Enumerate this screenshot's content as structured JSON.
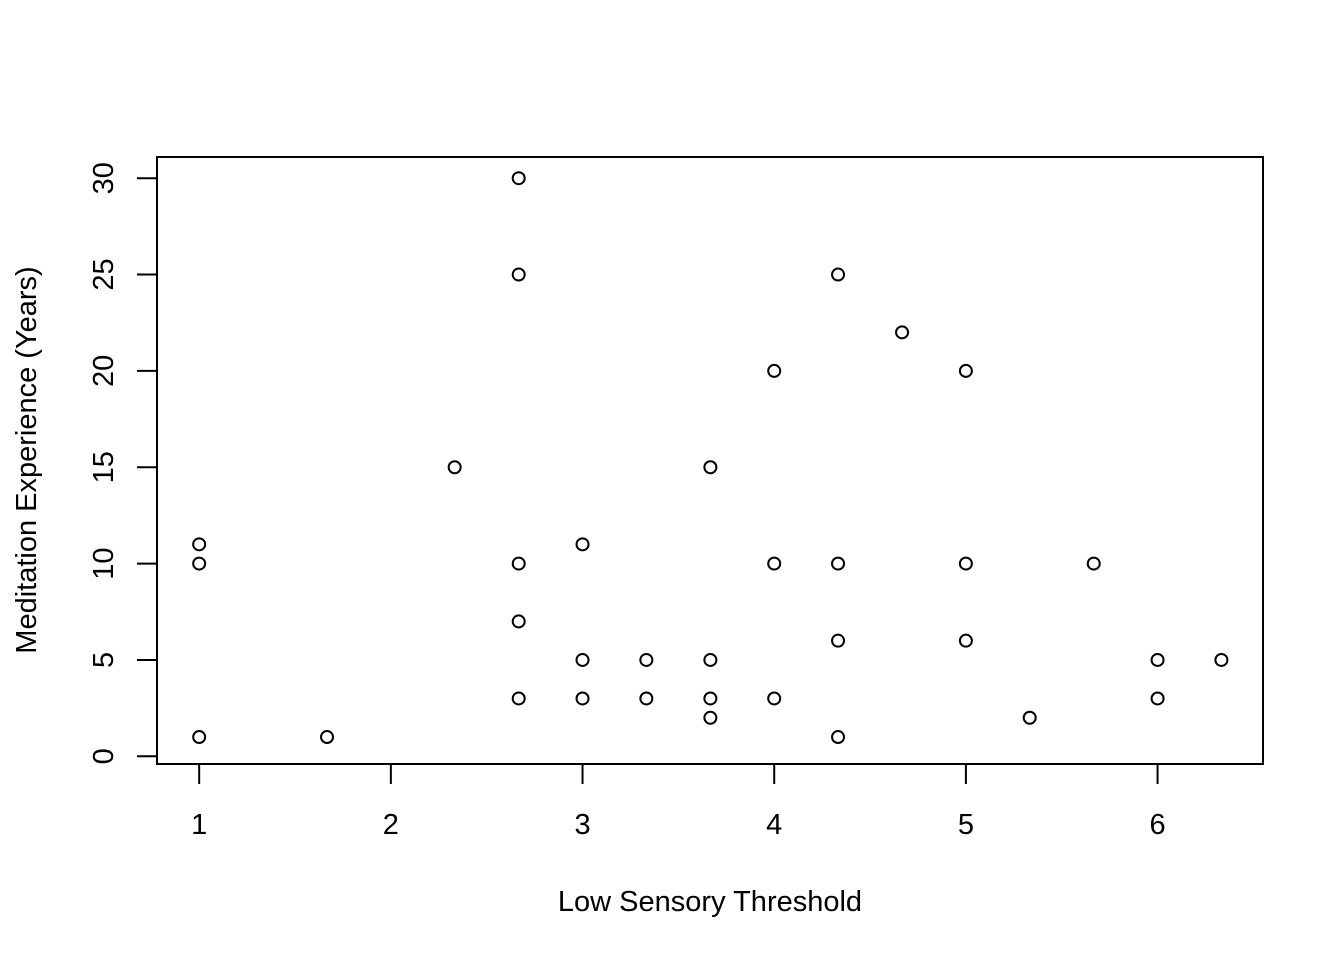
{
  "chart_data": {
    "type": "scatter",
    "title": "",
    "xlabel": "Low Sensory Threshold",
    "ylabel": "Meditation Experience (Years)",
    "xlim": [
      0.78,
      6.55
    ],
    "ylim": [
      -0.4,
      31.1
    ],
    "xticks": [
      1,
      2,
      3,
      4,
      5,
      6
    ],
    "yticks": [
      0,
      5,
      10,
      15,
      20,
      25,
      30
    ],
    "grid": false,
    "marker": "open-circle",
    "color": "#000000",
    "points": [
      {
        "x": 1.0,
        "y": 11
      },
      {
        "x": 1.0,
        "y": 10
      },
      {
        "x": 1.0,
        "y": 1
      },
      {
        "x": 1.667,
        "y": 1
      },
      {
        "x": 2.333,
        "y": 15
      },
      {
        "x": 2.667,
        "y": 30
      },
      {
        "x": 2.667,
        "y": 25
      },
      {
        "x": 2.667,
        "y": 10
      },
      {
        "x": 2.667,
        "y": 7
      },
      {
        "x": 2.667,
        "y": 3
      },
      {
        "x": 3.0,
        "y": 11
      },
      {
        "x": 3.0,
        "y": 5
      },
      {
        "x": 3.0,
        "y": 3
      },
      {
        "x": 3.333,
        "y": 5
      },
      {
        "x": 3.333,
        "y": 3
      },
      {
        "x": 3.667,
        "y": 15
      },
      {
        "x": 3.667,
        "y": 5
      },
      {
        "x": 3.667,
        "y": 3
      },
      {
        "x": 3.667,
        "y": 2
      },
      {
        "x": 4.0,
        "y": 20
      },
      {
        "x": 4.0,
        "y": 10
      },
      {
        "x": 4.0,
        "y": 3
      },
      {
        "x": 4.333,
        "y": 25
      },
      {
        "x": 4.333,
        "y": 10
      },
      {
        "x": 4.333,
        "y": 6
      },
      {
        "x": 4.333,
        "y": 1
      },
      {
        "x": 4.667,
        "y": 22
      },
      {
        "x": 5.0,
        "y": 20
      },
      {
        "x": 5.0,
        "y": 10
      },
      {
        "x": 5.0,
        "y": 6
      },
      {
        "x": 5.333,
        "y": 2
      },
      {
        "x": 5.667,
        "y": 10
      },
      {
        "x": 6.0,
        "y": 5
      },
      {
        "x": 6.0,
        "y": 3
      },
      {
        "x": 6.333,
        "y": 5
      }
    ]
  }
}
